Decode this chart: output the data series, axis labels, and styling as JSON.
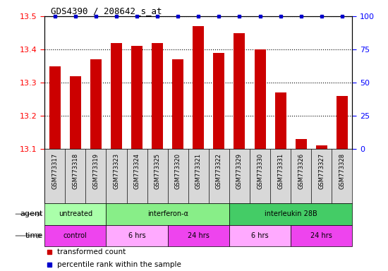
{
  "title": "GDS4390 / 208642_s_at",
  "samples": [
    "GSM773317",
    "GSM773318",
    "GSM773319",
    "GSM773323",
    "GSM773324",
    "GSM773325",
    "GSM773320",
    "GSM773321",
    "GSM773322",
    "GSM773329",
    "GSM773330",
    "GSM773331",
    "GSM773326",
    "GSM773327",
    "GSM773328"
  ],
  "values": [
    13.35,
    13.32,
    13.37,
    13.42,
    13.41,
    13.42,
    13.37,
    13.47,
    13.39,
    13.45,
    13.4,
    13.27,
    13.13,
    13.11,
    13.26
  ],
  "percentile": [
    100,
    100,
    100,
    100,
    100,
    100,
    100,
    100,
    100,
    100,
    100,
    100,
    100,
    100,
    100
  ],
  "bar_color": "#cc0000",
  "dot_color": "#0000cc",
  "ylim_left": [
    13.1,
    13.5
  ],
  "ylim_right": [
    0,
    100
  ],
  "yticks_left": [
    13.1,
    13.2,
    13.3,
    13.4,
    13.5
  ],
  "yticks_right": [
    0,
    25,
    50,
    75,
    100
  ],
  "agent_groups": [
    {
      "label": "untreated",
      "start": 0,
      "end": 3,
      "color": "#aaffaa"
    },
    {
      "label": "interferon-α",
      "start": 3,
      "end": 9,
      "color": "#88ee88"
    },
    {
      "label": "interleukin 28B",
      "start": 9,
      "end": 15,
      "color": "#44cc66"
    }
  ],
  "time_groups": [
    {
      "label": "control",
      "start": 0,
      "end": 3,
      "color": "#ee44ee"
    },
    {
      "label": "6 hrs",
      "start": 3,
      "end": 6,
      "color": "#ffaaff"
    },
    {
      "label": "24 hrs",
      "start": 6,
      "end": 9,
      "color": "#ee44ee"
    },
    {
      "label": "6 hrs",
      "start": 9,
      "end": 12,
      "color": "#ffaaff"
    },
    {
      "label": "24 hrs",
      "start": 12,
      "end": 15,
      "color": "#ee44ee"
    }
  ],
  "agent_label": "agent",
  "time_label": "time",
  "legend_bar_label": "transformed count",
  "legend_dot_label": "percentile rank within the sample",
  "background_color": "#ffffff",
  "tick_area_color": "#d8d8d8"
}
